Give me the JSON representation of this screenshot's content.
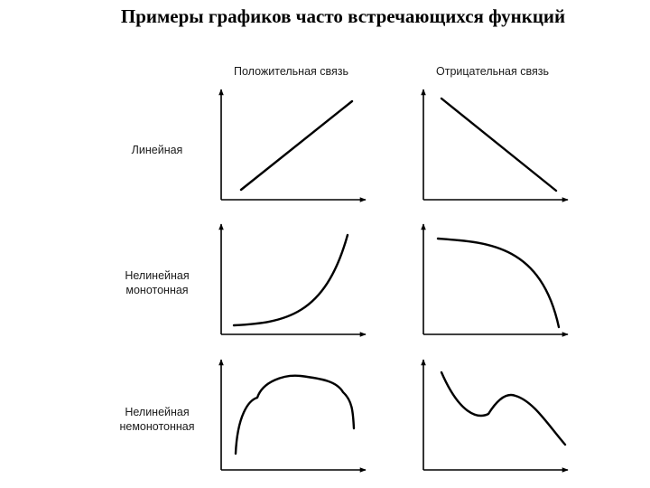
{
  "title": "Примеры графиков часто встречающихся функций",
  "columns": [
    {
      "label": "Положительная связь"
    },
    {
      "label": "Отрицательная связь"
    }
  ],
  "rows": [
    {
      "label_lines": [
        "Линейная"
      ]
    },
    {
      "label_lines": [
        "Нелинейная",
        "монотонная"
      ]
    },
    {
      "label_lines": [
        "Нелинейная",
        "немонотонная"
      ]
    }
  ],
  "graphs": [
    {
      "row": 0,
      "col": 0,
      "shape": "linear-increasing"
    },
    {
      "row": 0,
      "col": 1,
      "shape": "linear-decreasing"
    },
    {
      "row": 1,
      "col": 0,
      "shape": "nonlinear-monotone-increasing"
    },
    {
      "row": 1,
      "col": 1,
      "shape": "nonlinear-monotone-decreasing"
    },
    {
      "row": 2,
      "col": 0,
      "shape": "nonlinear-nonmonotone-hump"
    },
    {
      "row": 2,
      "col": 1,
      "shape": "nonlinear-nonmonotone-wave"
    }
  ],
  "colors": {
    "line": "#000000",
    "text": "#1a1a1a",
    "background": "#ffffff"
  }
}
